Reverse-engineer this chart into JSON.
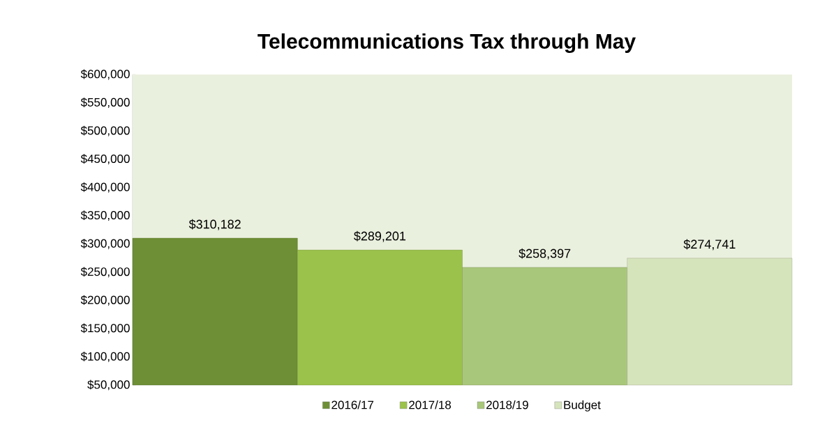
{
  "chart_data": {
    "type": "bar",
    "title": "Telecommunications Tax through May",
    "categories": [
      null
    ],
    "series": [
      {
        "name": "2016/17",
        "color": "#6e8f35",
        "values": [
          310182
        ],
        "value_labels": [
          "$310,182"
        ]
      },
      {
        "name": "2017/18",
        "color": "#9bc24a",
        "values": [
          289201
        ],
        "value_labels": [
          "$289,201"
        ]
      },
      {
        "name": "2018/19",
        "color": "#a9c77a",
        "values": [
          258397
        ],
        "value_labels": [
          "$258,397"
        ]
      },
      {
        "name": "Budget",
        "color": "#d6e4bc",
        "values": [
          274741
        ],
        "value_labels": [
          "$274,741"
        ]
      }
    ],
    "ylim": [
      50000,
      600000
    ],
    "yticks": [
      {
        "value": 50000,
        "label": "$50,000"
      },
      {
        "value": 100000,
        "label": "$100,000"
      },
      {
        "value": 150000,
        "label": "$150,000"
      },
      {
        "value": 200000,
        "label": "$200,000"
      },
      {
        "value": 250000,
        "label": "$250,000"
      },
      {
        "value": 300000,
        "label": "$300,000"
      },
      {
        "value": 350000,
        "label": "$350,000"
      },
      {
        "value": 400000,
        "label": "$400,000"
      },
      {
        "value": 450000,
        "label": "$450,000"
      },
      {
        "value": 500000,
        "label": "$500,000"
      },
      {
        "value": 550000,
        "label": "$550,000"
      },
      {
        "value": 600000,
        "label": "$600,000"
      }
    ],
    "legend": "bottom"
  }
}
